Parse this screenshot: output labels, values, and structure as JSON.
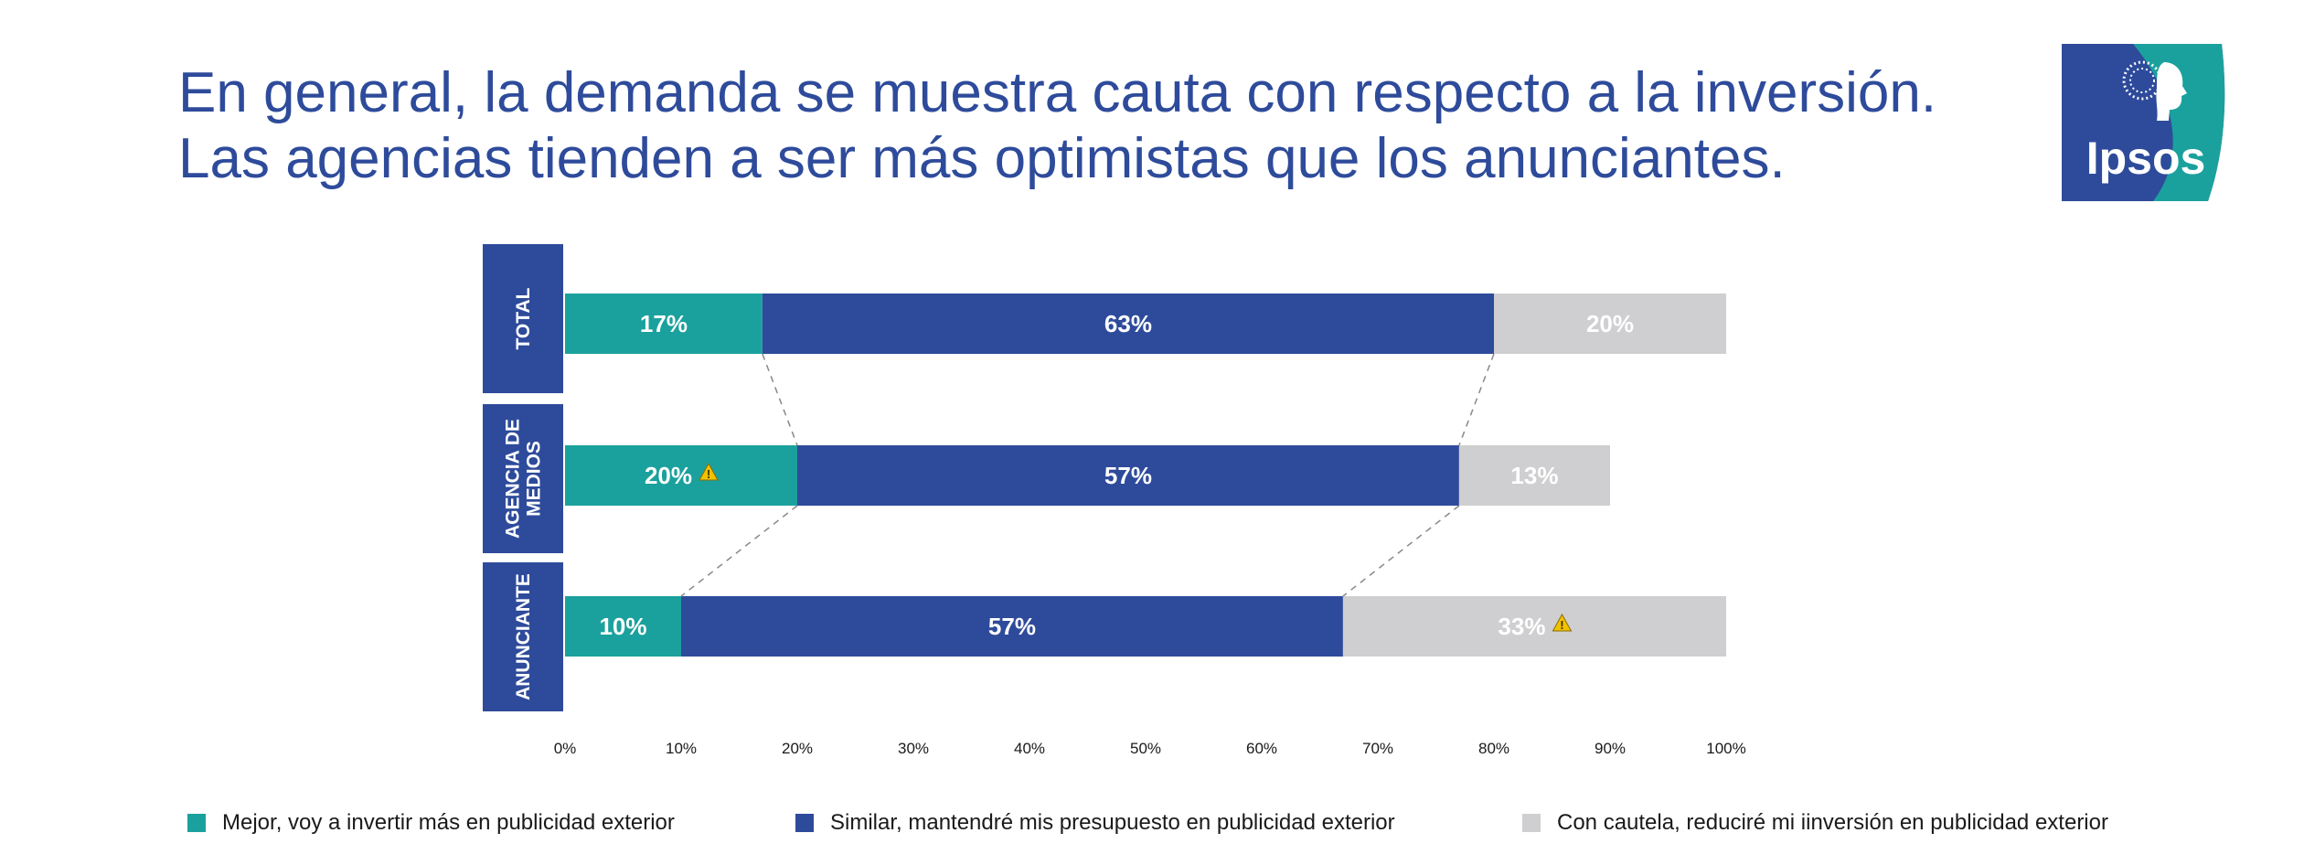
{
  "title": {
    "line1": "En general, la demanda se muestra cauta con respecto a la inversión.",
    "line2": "Las agencias tienden a ser más optimistas que los anunciantes."
  },
  "logo": {
    "text": "Ipsos",
    "icon": "ipsos-head-logo"
  },
  "colors": {
    "teal": "#1ba19d",
    "blue": "#2e4b9b",
    "gray": "#cfcfd1",
    "warning": "#f2c200"
  },
  "chart_data": {
    "type": "bar",
    "orientation": "horizontal-stacked-100",
    "categories": [
      "TOTAL",
      "AGENCIA DE MEDIOS",
      "ANUNCIANTE"
    ],
    "series": [
      {
        "name": "Mejor, voy a invertir más en publicidad exterior",
        "color": "#1ba19d",
        "values": [
          17,
          20,
          10
        ],
        "labels": [
          "17%",
          "20%",
          "10%"
        ],
        "warning": [
          false,
          true,
          false
        ]
      },
      {
        "name": "Similar, mantendré mis presupuesto en publicidad exterior",
        "color": "#2e4b9b",
        "values": [
          63,
          57,
          57
        ],
        "labels": [
          "63%",
          "57%",
          "57%"
        ],
        "warning": [
          false,
          false,
          false
        ]
      },
      {
        "name": "Con cautela, reduciré mi iinversión en publicidad exterior",
        "color": "#cfcfd1",
        "values": [
          20,
          13,
          33
        ],
        "labels": [
          "20%",
          "13%",
          "33%"
        ],
        "warning": [
          false,
          false,
          true
        ]
      }
    ],
    "xlim": [
      0,
      100
    ],
    "xticks": [
      "0%",
      "10%",
      "20%",
      "30%",
      "40%",
      "50%",
      "60%",
      "70%",
      "80%",
      "90%",
      "100%"
    ],
    "legend_position": "bottom",
    "grid": false
  }
}
